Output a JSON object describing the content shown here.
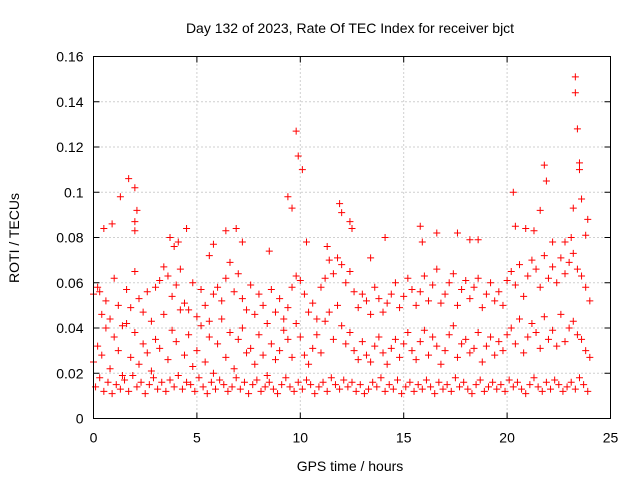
{
  "chart_data": {
    "type": "scatter",
    "title": "Day 132 of 2023, Rate Of TEC Index for receiver bjct",
    "xlabel": "GPS time / hours",
    "ylabel": "ROTI / TECUs",
    "xlim": [
      0,
      25
    ],
    "ylim": [
      0,
      0.16
    ],
    "xticks": [
      0,
      5,
      10,
      15,
      20,
      25
    ],
    "xtick_labels": [
      "0",
      "5",
      "10",
      "15",
      "20",
      "25"
    ],
    "yticks": [
      0,
      0.02,
      0.04,
      0.06,
      0.08,
      0.1,
      0.12,
      0.14,
      0.16
    ],
    "ytick_labels": [
      "0",
      "0.02",
      "0.04",
      "0.06",
      "0.08",
      "0.1",
      "0.12",
      "0.14",
      "0.16"
    ],
    "grid": true,
    "marker": "+",
    "series": [
      {
        "name": "ROTI",
        "color": "#ff0000",
        "x": [
          0.0,
          0.2,
          0.4,
          0.6,
          0.8,
          1.0,
          1.2,
          1.4,
          1.6,
          1.8,
          2.0,
          2.2,
          2.4,
          2.6,
          2.8,
          3.0,
          3.2,
          3.4,
          3.6,
          3.8,
          4.0,
          4.2,
          4.4,
          4.6,
          4.8,
          5.0,
          5.2,
          5.4,
          5.6,
          5.8,
          6.0,
          6.2,
          6.4,
          6.6,
          6.8,
          7.0,
          7.2,
          7.4,
          7.6,
          7.8,
          8.0,
          8.2,
          8.4,
          8.6,
          8.8,
          9.0,
          9.2,
          9.4,
          9.6,
          9.8,
          10.0,
          10.2,
          10.4,
          10.6,
          10.8,
          11.0,
          11.2,
          11.4,
          11.6,
          11.8,
          12.0,
          12.2,
          12.4,
          12.6,
          12.8,
          13.0,
          13.2,
          13.4,
          13.6,
          13.8,
          14.0,
          14.2,
          14.4,
          14.6,
          14.8,
          15.0,
          15.2,
          15.4,
          15.6,
          15.8,
          16.0,
          16.2,
          16.4,
          16.6,
          16.8,
          17.0,
          17.2,
          17.4,
          17.6,
          17.8,
          18.0,
          18.2,
          18.4,
          18.6,
          18.8,
          19.0,
          19.2,
          19.4,
          19.6,
          19.8,
          20.0,
          20.2,
          20.4,
          20.6,
          20.8,
          21.0,
          21.2,
          21.4,
          21.6,
          21.8,
          22.0,
          22.2,
          22.4,
          22.6,
          22.8,
          23.0,
          23.2,
          23.4,
          23.6,
          23.8,
          24.0,
          0.1,
          0.3,
          0.5,
          0.7,
          0.9,
          1.1,
          1.3,
          1.5,
          1.7,
          1.9,
          2.1,
          2.3,
          2.5,
          2.7,
          2.9,
          3.1,
          3.3,
          3.5,
          3.7,
          3.9,
          4.1,
          4.3,
          4.5,
          4.7,
          4.9,
          5.1,
          5.3,
          5.5,
          5.7,
          5.9,
          6.1,
          6.3,
          6.5,
          6.7,
          6.9,
          7.1,
          7.3,
          7.5,
          7.7,
          7.9,
          8.1,
          8.3,
          8.5,
          8.7,
          8.9,
          9.1,
          9.3,
          9.5,
          9.7,
          9.9,
          10.1,
          10.3,
          10.5,
          10.7,
          10.9,
          11.1,
          11.3,
          11.5,
          11.7,
          11.9,
          12.1,
          12.3,
          12.5,
          12.7,
          12.9,
          13.1,
          13.3,
          13.5,
          13.7,
          13.9,
          14.1,
          14.3,
          14.5,
          14.7,
          14.9,
          15.1,
          15.3,
          15.5,
          15.7,
          15.9,
          16.1,
          16.3,
          16.5,
          16.7,
          16.9,
          17.1,
          17.3,
          17.5,
          17.7,
          17.9,
          18.1,
          18.3,
          18.5,
          18.7,
          18.9,
          19.1,
          19.3,
          19.5,
          19.7,
          19.9,
          20.1,
          20.3,
          20.5,
          20.7,
          20.9,
          21.1,
          21.3,
          21.5,
          21.7,
          21.9,
          22.1,
          22.3,
          22.5,
          22.7,
          22.9,
          23.1,
          23.3,
          23.5,
          23.7,
          23.9,
          0.0,
          0.2,
          0.4,
          0.6,
          0.8,
          1.0,
          1.2,
          1.4,
          1.6,
          1.8,
          2.0,
          2.2,
          2.4,
          2.6,
          2.8,
          3.0,
          3.2,
          3.4,
          3.6,
          3.8,
          4.0,
          4.2,
          4.4,
          4.6,
          4.8,
          5.0,
          5.2,
          5.4,
          5.6,
          5.8,
          6.0,
          6.2,
          6.4,
          6.6,
          6.8,
          7.0,
          7.2,
          7.4,
          7.6,
          7.8,
          8.0,
          8.2,
          8.4,
          8.6,
          8.8,
          9.0,
          9.2,
          9.4,
          9.6,
          9.8,
          10.0,
          10.2,
          10.4,
          10.6,
          10.8,
          11.0,
          11.2,
          11.4,
          11.6,
          11.8,
          12.0,
          12.2,
          12.4,
          12.6,
          12.8,
          13.0,
          13.2,
          13.4,
          13.6,
          13.8,
          14.0,
          14.2,
          14.4,
          14.6,
          14.8,
          15.0,
          15.2,
          15.4,
          15.6,
          15.8,
          16.0,
          16.2,
          16.4,
          16.6,
          16.8,
          17.0,
          17.2,
          17.4,
          17.6,
          17.8,
          18.0,
          18.2,
          18.4,
          18.6,
          18.8,
          19.0,
          19.2,
          19.4,
          19.6,
          19.8,
          20.0,
          20.2,
          20.4,
          20.6,
          20.8,
          21.0,
          21.2,
          21.4,
          21.6,
          21.8,
          22.0,
          22.2,
          22.4,
          22.6,
          22.8,
          23.0,
          23.2,
          23.4,
          23.6,
          23.8,
          24.0,
          0.3,
          0.5,
          0.9,
          1.3,
          1.7,
          2.0,
          2.0,
          2.0,
          2.1,
          3.7,
          3.9,
          4.1,
          4.5,
          5.6,
          5.8,
          6.4,
          6.9,
          7.2,
          8.5,
          9.4,
          9.6,
          9.8,
          9.9,
          10.1,
          10.3,
          11.3,
          11.9,
          12.0,
          12.4,
          12.5,
          13.4,
          14.1,
          15.8,
          15.9,
          16.6,
          17.6,
          18.2,
          18.6,
          20.3,
          20.4,
          20.9,
          21.3,
          21.6,
          21.8,
          21.9,
          22.2,
          22.8,
          23.1,
          23.2,
          23.3,
          23.3,
          23.4,
          23.5,
          23.5,
          23.6,
          23.8,
          23.9
        ],
        "y": [
          0.025,
          0.032,
          0.028,
          0.04,
          0.022,
          0.036,
          0.03,
          0.019,
          0.042,
          0.027,
          0.038,
          0.024,
          0.033,
          0.029,
          0.021,
          0.035,
          0.031,
          0.046,
          0.026,
          0.039,
          0.034,
          0.048,
          0.028,
          0.037,
          0.023,
          0.03,
          0.041,
          0.025,
          0.036,
          0.02,
          0.033,
          0.044,
          0.027,
          0.038,
          0.022,
          0.035,
          0.04,
          0.029,
          0.031,
          0.024,
          0.037,
          0.028,
          0.019,
          0.033,
          0.026,
          0.03,
          0.039,
          0.035,
          0.027,
          0.042,
          0.036,
          0.028,
          0.024,
          0.031,
          0.037,
          0.029,
          0.043,
          0.047,
          0.035,
          0.05,
          0.041,
          0.033,
          0.038,
          0.03,
          0.026,
          0.034,
          0.028,
          0.025,
          0.032,
          0.036,
          0.029,
          0.024,
          0.031,
          0.035,
          0.027,
          0.033,
          0.038,
          0.03,
          0.026,
          0.034,
          0.039,
          0.028,
          0.036,
          0.032,
          0.024,
          0.03,
          0.037,
          0.041,
          0.027,
          0.033,
          0.035,
          0.029,
          0.031,
          0.038,
          0.025,
          0.032,
          0.036,
          0.028,
          0.034,
          0.03,
          0.037,
          0.04,
          0.033,
          0.044,
          0.029,
          0.036,
          0.042,
          0.038,
          0.031,
          0.045,
          0.035,
          0.039,
          0.032,
          0.046,
          0.034,
          0.04,
          0.043,
          0.037,
          0.035,
          0.03,
          0.027,
          0.014,
          0.018,
          0.012,
          0.016,
          0.011,
          0.015,
          0.013,
          0.017,
          0.012,
          0.019,
          0.014,
          0.016,
          0.011,
          0.015,
          0.018,
          0.013,
          0.016,
          0.012,
          0.017,
          0.014,
          0.019,
          0.013,
          0.016,
          0.015,
          0.012,
          0.018,
          0.014,
          0.011,
          0.016,
          0.013,
          0.017,
          0.015,
          0.012,
          0.014,
          0.018,
          0.013,
          0.016,
          0.011,
          0.015,
          0.017,
          0.012,
          0.014,
          0.016,
          0.013,
          0.011,
          0.015,
          0.018,
          0.014,
          0.012,
          0.016,
          0.013,
          0.017,
          0.015,
          0.011,
          0.014,
          0.016,
          0.012,
          0.018,
          0.015,
          0.013,
          0.017,
          0.014,
          0.016,
          0.012,
          0.015,
          0.011,
          0.013,
          0.016,
          0.014,
          0.018,
          0.012,
          0.015,
          0.013,
          0.017,
          0.011,
          0.014,
          0.016,
          0.012,
          0.015,
          0.013,
          0.017,
          0.014,
          0.011,
          0.016,
          0.013,
          0.015,
          0.012,
          0.018,
          0.014,
          0.016,
          0.013,
          0.011,
          0.015,
          0.017,
          0.012,
          0.014,
          0.016,
          0.013,
          0.015,
          0.012,
          0.017,
          0.014,
          0.016,
          0.013,
          0.011,
          0.015,
          0.018,
          0.014,
          0.012,
          0.016,
          0.013,
          0.017,
          0.015,
          0.012,
          0.014,
          0.016,
          0.013,
          0.018,
          0.015,
          0.012,
          0.055,
          0.058,
          0.046,
          0.052,
          0.044,
          0.062,
          0.05,
          0.041,
          0.057,
          0.049,
          0.065,
          0.053,
          0.047,
          0.056,
          0.043,
          0.058,
          0.061,
          0.067,
          0.063,
          0.054,
          0.059,
          0.066,
          0.051,
          0.048,
          0.06,
          0.045,
          0.057,
          0.05,
          0.043,
          0.055,
          0.058,
          0.052,
          0.062,
          0.069,
          0.056,
          0.064,
          0.053,
          0.048,
          0.059,
          0.046,
          0.055,
          0.05,
          0.042,
          0.057,
          0.047,
          0.053,
          0.044,
          0.049,
          0.058,
          0.063,
          0.061,
          0.055,
          0.047,
          0.051,
          0.044,
          0.058,
          0.062,
          0.07,
          0.064,
          0.071,
          0.068,
          0.06,
          0.065,
          0.056,
          0.049,
          0.055,
          0.052,
          0.046,
          0.058,
          0.053,
          0.047,
          0.051,
          0.055,
          0.06,
          0.049,
          0.054,
          0.062,
          0.057,
          0.05,
          0.056,
          0.063,
          0.052,
          0.059,
          0.066,
          0.051,
          0.055,
          0.06,
          0.064,
          0.05,
          0.057,
          0.061,
          0.053,
          0.058,
          0.062,
          0.049,
          0.055,
          0.06,
          0.052,
          0.056,
          0.05,
          0.061,
          0.065,
          0.059,
          0.068,
          0.054,
          0.063,
          0.07,
          0.066,
          0.058,
          0.072,
          0.062,
          0.067,
          0.06,
          0.071,
          0.064,
          0.069,
          0.073,
          0.066,
          0.063,
          0.058,
          0.052,
          0.056,
          0.084,
          0.086,
          0.098,
          0.106,
          0.102,
          0.087,
          0.083,
          0.092,
          0.08,
          0.076,
          0.078,
          0.084,
          0.072,
          0.077,
          0.083,
          0.084,
          0.078,
          0.074,
          0.098,
          0.093,
          0.127,
          0.116,
          0.11,
          0.078,
          0.076,
          0.095,
          0.091,
          0.087,
          0.084,
          0.071,
          0.08,
          0.085,
          0.078,
          0.082,
          0.082,
          0.079,
          0.079,
          0.1,
          0.085,
          0.084,
          0.083,
          0.092,
          0.112,
          0.105,
          0.078,
          0.078,
          0.08,
          0.093,
          0.151,
          0.144,
          0.128,
          0.113,
          0.11,
          0.097,
          0.081,
          0.088
        ]
      }
    ]
  }
}
